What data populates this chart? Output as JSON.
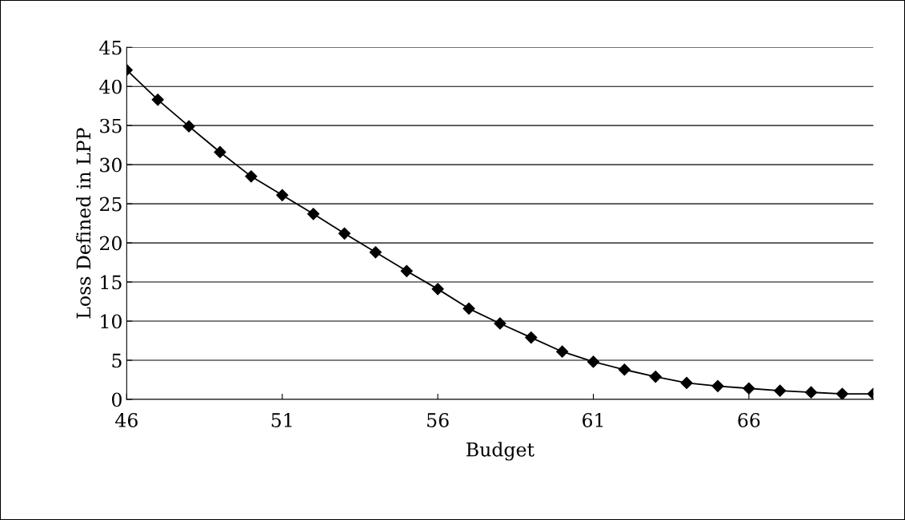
{
  "chart_data": {
    "type": "line",
    "xlabel": "Budget",
    "ylabel": "Loss Defined in LPP",
    "x": [
      46,
      47,
      48,
      49,
      50,
      51,
      52,
      53,
      54,
      55,
      56,
      57,
      58,
      59,
      60,
      61,
      62,
      63,
      64,
      65,
      66,
      67,
      68,
      69,
      70
    ],
    "series": [
      {
        "color": "#000000",
        "values": [
          42.1,
          38.3,
          34.9,
          31.6,
          28.5,
          26.1,
          23.7,
          21.2,
          18.8,
          16.4,
          14.1,
          11.6,
          9.7,
          7.9,
          6.1,
          4.8,
          3.8,
          2.9,
          2.1,
          1.7,
          1.4,
          1.1,
          0.9,
          0.7,
          0.7
        ]
      }
    ],
    "xlim": [
      46,
      70
    ],
    "xticks": [
      46,
      51,
      56,
      61,
      66
    ],
    "ylim": [
      0,
      45
    ],
    "yticks": [
      0,
      5,
      10,
      15,
      20,
      25,
      30,
      35,
      40,
      45
    ],
    "grid": "y",
    "marker": "diamond",
    "line_style": "solid"
  }
}
